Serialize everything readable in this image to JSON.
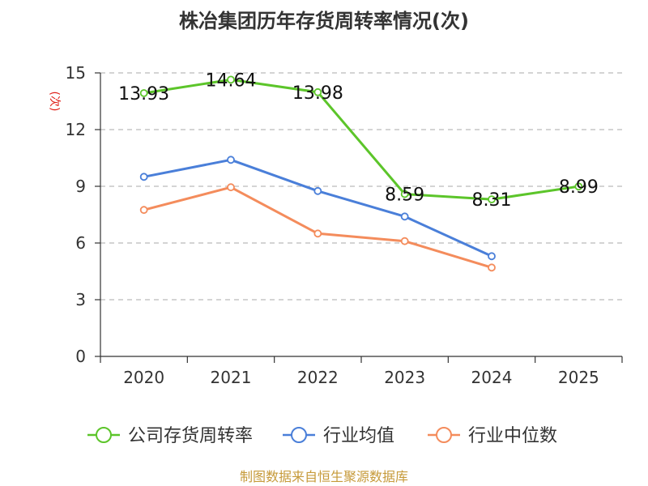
{
  "chart_data": {
    "type": "line",
    "title": "株冶集团历年存货周转率情况(次)",
    "ylabel": "(次)",
    "categories": [
      "2020",
      "2021",
      "2022",
      "2023",
      "2024",
      "2025"
    ],
    "ylim": [
      0,
      15
    ],
    "yticks": [
      "0",
      "3",
      "6",
      "9",
      "12",
      "15"
    ],
    "grid": true,
    "legend_position": "bottom",
    "series": [
      {
        "name": "公司存货周转率",
        "color": "#5cc52a",
        "values": [
          13.93,
          14.64,
          13.98,
          8.59,
          8.31,
          8.99
        ],
        "labels": [
          "13.93",
          "14.64",
          "13.98",
          "8.59",
          "8.31",
          "8.99"
        ]
      },
      {
        "name": "行业均值",
        "color": "#4a7fd9",
        "values": [
          9.5,
          10.4,
          8.75,
          7.4,
          5.3,
          null
        ]
      },
      {
        "name": "行业中位数",
        "color": "#f48c5c",
        "values": [
          7.75,
          8.95,
          6.5,
          6.1,
          4.7,
          null
        ]
      }
    ]
  },
  "footer": {
    "source": "制图数据来自恒生聚源数据库"
  }
}
